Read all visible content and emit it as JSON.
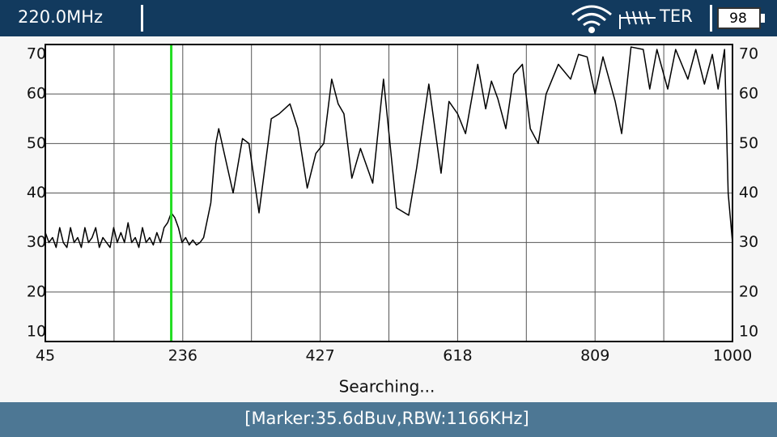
{
  "header": {
    "frequency": "220.0MHz",
    "mode": "TER",
    "battery": "98"
  },
  "chart_data": {
    "type": "line",
    "x": [
      45,
      50,
      55,
      60,
      65,
      70,
      75,
      80,
      85,
      90,
      95,
      100,
      105,
      110,
      115,
      120,
      125,
      130,
      135,
      140,
      145,
      150,
      155,
      160,
      165,
      170,
      175,
      180,
      185,
      190,
      195,
      200,
      205,
      210,
      215,
      220,
      225,
      230,
      235,
      240,
      245,
      250,
      255,
      260,
      265,
      275,
      282,
      286,
      306,
      319,
      328,
      342,
      359,
      370,
      385,
      396,
      409,
      421,
      432,
      443,
      452,
      460,
      471,
      483,
      500,
      515,
      533,
      550,
      561,
      578,
      595,
      606,
      618,
      629,
      646,
      657,
      665,
      674,
      685,
      696,
      708,
      719,
      730,
      741,
      758,
      775,
      786,
      798,
      809,
      820,
      837,
      846,
      859,
      876,
      885,
      895,
      910,
      921,
      938,
      949,
      961,
      972,
      980,
      989,
      994,
      1000
    ],
    "series": [
      {
        "color": "#000000",
        "values": [
          32,
          30,
          31,
          29,
          33,
          30,
          29,
          33,
          30,
          31,
          29,
          33,
          30,
          31,
          33,
          29,
          31,
          30,
          29,
          33,
          30,
          32,
          30,
          34,
          30,
          31,
          29,
          33,
          30,
          31,
          29.5,
          32,
          30,
          33,
          34,
          36,
          35,
          33,
          30,
          31,
          29.5,
          30.5,
          29.5,
          30,
          31,
          38,
          50,
          53,
          40,
          51,
          50,
          36,
          55,
          56,
          58,
          53,
          41,
          48,
          50,
          63,
          58,
          56,
          43,
          49,
          42,
          63,
          37,
          35.5,
          45,
          62,
          44,
          58.5,
          56,
          52,
          66,
          57,
          62.6,
          59,
          53,
          64,
          66,
          53,
          50,
          60,
          66,
          63,
          68,
          67.5,
          60,
          67.5,
          58.5,
          52,
          69.5,
          69,
          61,
          69,
          61,
          69,
          63,
          69,
          62,
          68,
          61,
          69,
          40,
          30
        ]
      }
    ],
    "xlim": [
      45,
      1000
    ],
    "xticks": [
      45,
      236,
      427,
      618,
      809,
      1000
    ],
    "ylim": [
      10,
      70
    ],
    "yticks": [
      10,
      20,
      30,
      40,
      50,
      60,
      70
    ],
    "grid": true,
    "marker_x": 220,
    "marker_color": "#22dd22",
    "status": "Searching..."
  },
  "footer": {
    "text": "[Marker:35.6dBuv,RBW:1166KHz]"
  }
}
